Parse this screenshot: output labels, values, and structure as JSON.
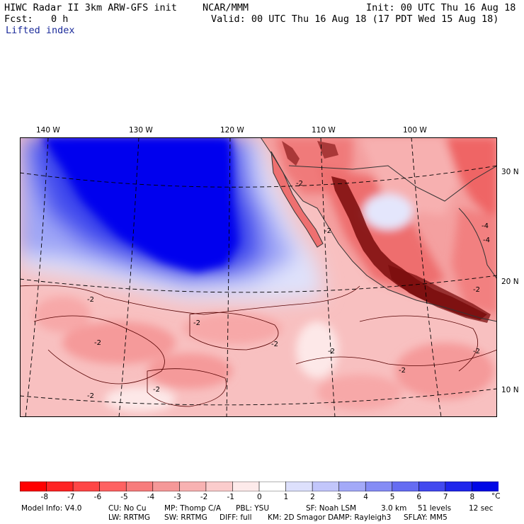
{
  "header": {
    "title": "HIWC Radar II 3km ARW-GFS init",
    "org": "NCAR/MMM",
    "init": "Init: 00 UTC Thu 16 Aug 18",
    "fcst_label": "Fcst:",
    "fcst_value": "0 h",
    "valid": "Valid: 00 UTC Thu 16 Aug 18 (17 PDT Wed 15 Aug 18)",
    "field": "Lifted index"
  },
  "map": {
    "lon_labels": [
      "140 W",
      "130 W",
      "120 W",
      "110 W",
      "100 W"
    ],
    "lat_labels": [
      "30 N",
      "20 N",
      "10 N"
    ],
    "contour_labels": [
      "-2",
      "-4"
    ],
    "colors": {
      "deep_blue": "#0000ee",
      "land_red": "#f07a7a",
      "coast": "#333333",
      "terrain": "#7a0c0c"
    }
  },
  "colorbar": {
    "ticks": [
      "-8",
      "-7",
      "-6",
      "-5",
      "-4",
      "-3",
      "-2",
      "-1",
      "0",
      "1",
      "2",
      "3",
      "4",
      "5",
      "6",
      "7",
      "8"
    ],
    "unit": "°C",
    "colors": [
      "#ff0000",
      "#ff2424",
      "#ff4646",
      "#fe6262",
      "#f77c7c",
      "#f59898",
      "#f8b2b2",
      "#fbcccc",
      "#fdeaea",
      "#ffffff",
      "#dde0fc",
      "#c2c6fb",
      "#a3a9f8",
      "#858cf5",
      "#656cf2",
      "#4249ef",
      "#1f26ec",
      "#0008e6"
    ]
  },
  "footer": {
    "line1": [
      "Model Info: V4.0",
      "CU: No Cu",
      "MP: Thomp C/A",
      "PBL: YSU",
      "SF: Noah LSM",
      "3.0 km",
      "51 levels",
      "12 sec"
    ],
    "line2": [
      "LW: RRTMG",
      "SW: RRTMG",
      "DIFF: full",
      "KM: 2D Smagor",
      "DAMP: Rayleigh3",
      "SFLAY: MM5"
    ]
  }
}
